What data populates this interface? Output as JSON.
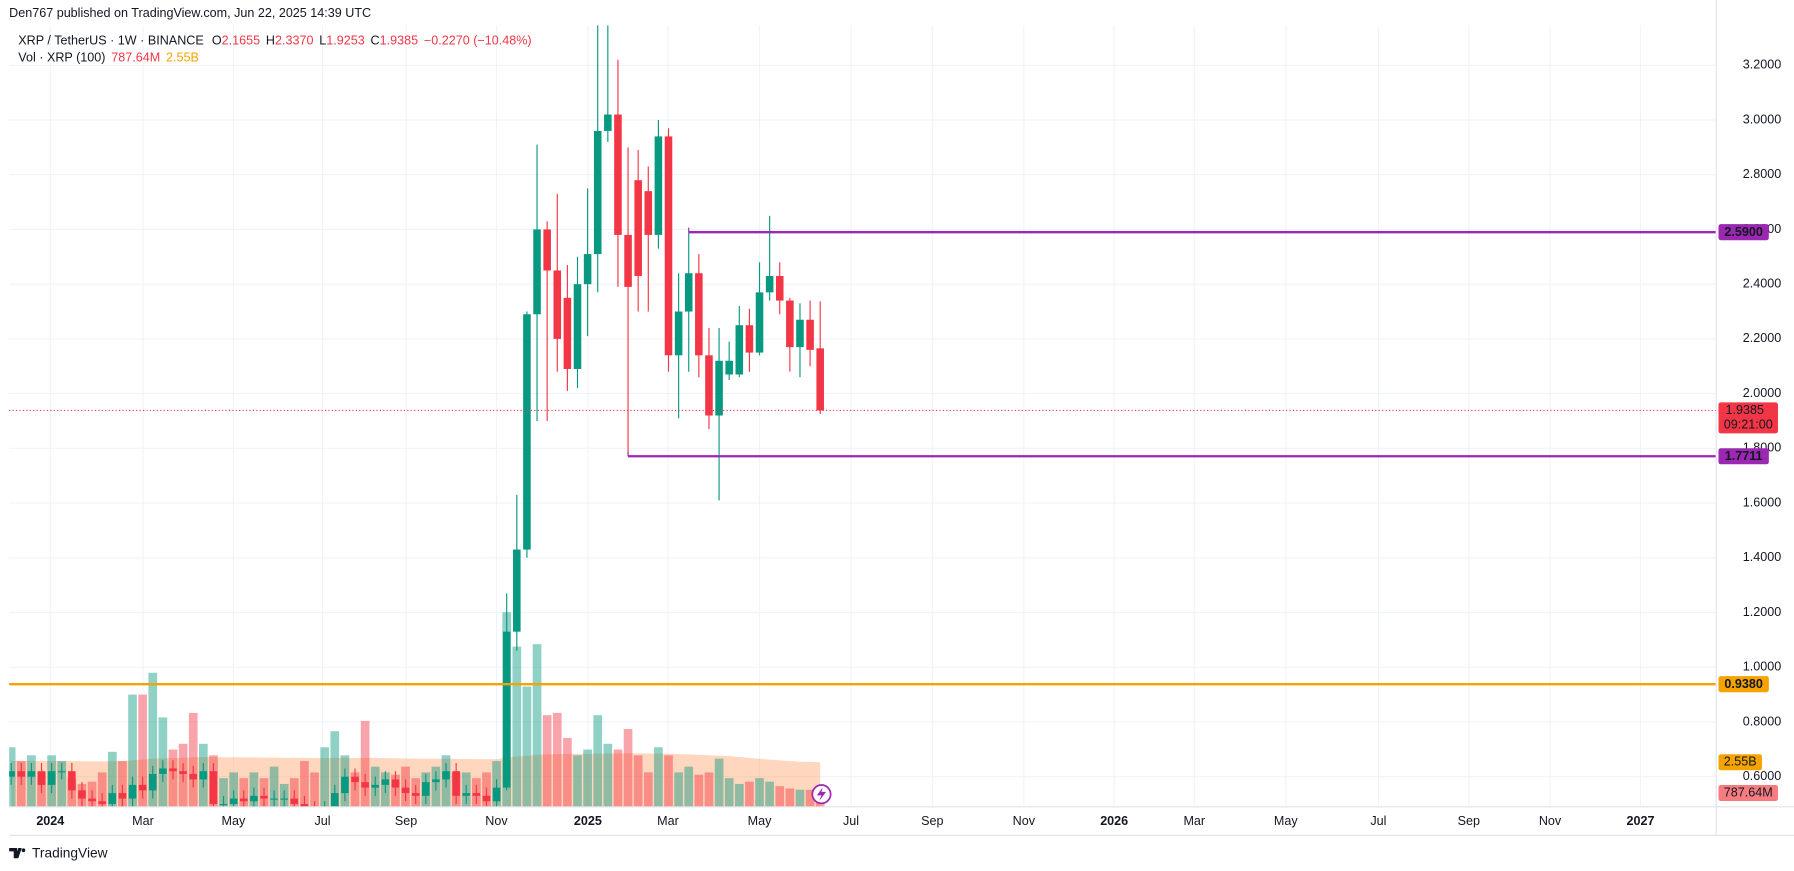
{
  "header": {
    "published": "Den767 published on TradingView.com, Jun 22, 2025 14:39 UTC"
  },
  "chart_data": {
    "type": "candlestick",
    "symbol": "XRP / TetherUS · 1W · BINANCE",
    "legend": [
      {
        "name": "O",
        "text": "2.1655"
      },
      {
        "name": "H",
        "text": "2.3370"
      },
      {
        "name": "L",
        "text": "1.9253"
      },
      {
        "name": "C",
        "text": "1.9385"
      }
    ],
    "change": "−0.2270 (−10.48%)",
    "categories": [
      null,
      null,
      null,
      null,
      null,
      null,
      null,
      null,
      null,
      null,
      null,
      null,
      null,
      null,
      null,
      null,
      null,
      null,
      null,
      null,
      null,
      null,
      null,
      null,
      null,
      null,
      null,
      null,
      null,
      null,
      null,
      null,
      null,
      null,
      null,
      null,
      null,
      null,
      null,
      null,
      null,
      null,
      null,
      null,
      null,
      null,
      null,
      null,
      null,
      null,
      null,
      null,
      null,
      null,
      null,
      null,
      null,
      null,
      null,
      null,
      null,
      null,
      null,
      null,
      null,
      null,
      null,
      null,
      null,
      null,
      null,
      null,
      null,
      null,
      null,
      null,
      null,
      null,
      null,
      null,
      null
    ],
    "open": [
      0.6,
      0.62,
      0.6,
      0.62,
      0.57,
      0.62,
      0.62,
      0.55,
      0.52,
      0.51,
      0.5,
      0.54,
      0.52,
      0.57,
      0.55,
      0.61,
      0.63,
      0.62,
      0.61,
      0.59,
      0.62,
      0.5,
      0.5,
      0.52,
      0.51,
      0.53,
      0.52,
      0.52,
      0.52,
      0.5,
      0.48,
      0.47,
      0.48,
      0.54,
      0.6,
      0.58,
      0.56,
      0.57,
      0.59,
      0.56,
      0.54,
      0.53,
      0.58,
      0.59,
      0.62,
      0.53,
      0.54,
      0.53,
      0.51,
      0.56,
      1.13,
      1.43,
      2.29,
      2.6,
      2.45,
      2.35,
      2.09,
      2.4,
      2.51,
      2.96,
      3.02,
      2.58,
      2.78,
      2.74,
      2.58,
      2.94,
      2.14,
      2.3,
      2.44,
      2.14,
      1.92,
      2.07,
      2.07,
      2.25,
      2.15,
      2.37,
      2.43,
      2.34,
      2.17,
      2.27,
      2.1655
    ],
    "high": [
      0.65,
      0.65,
      0.65,
      0.65,
      0.65,
      0.65,
      0.65,
      0.58,
      0.55,
      0.54,
      0.57,
      0.57,
      0.6,
      0.6,
      0.64,
      0.66,
      0.66,
      0.65,
      0.64,
      0.65,
      0.65,
      0.53,
      0.55,
      0.55,
      0.56,
      0.56,
      0.55,
      0.55,
      0.55,
      0.53,
      0.51,
      0.51,
      0.57,
      0.63,
      0.63,
      0.61,
      0.6,
      0.62,
      0.62,
      0.59,
      0.57,
      0.61,
      0.62,
      0.65,
      0.65,
      0.57,
      0.57,
      0.56,
      0.59,
      1.27,
      1.63,
      2.3,
      2.91,
      2.63,
      2.73,
      2.47,
      2.5,
      2.75,
      3.35,
      3.4,
      3.22,
      2.9,
      2.89,
      2.83,
      3.0,
      2.97,
      2.44,
      2.59,
      2.51,
      2.24,
      2.24,
      2.19,
      2.32,
      2.31,
      2.48,
      2.65,
      2.48,
      2.35,
      2.33,
      2.34,
      2.337
    ],
    "low": [
      0.57,
      0.57,
      0.57,
      0.54,
      0.54,
      0.59,
      0.52,
      0.49,
      0.48,
      0.47,
      0.47,
      0.49,
      0.49,
      0.52,
      0.52,
      0.58,
      0.59,
      0.58,
      0.56,
      0.56,
      0.47,
      0.47,
      0.47,
      0.48,
      0.48,
      0.49,
      0.49,
      0.49,
      0.47,
      0.45,
      0.44,
      0.44,
      0.45,
      0.51,
      0.55,
      0.53,
      0.53,
      0.54,
      0.53,
      0.51,
      0.5,
      0.5,
      0.55,
      0.56,
      0.5,
      0.5,
      0.5,
      0.48,
      0.48,
      0.55,
      1.06,
      1.4,
      1.9,
      1.9,
      2.08,
      2.01,
      2.02,
      2.21,
      2.37,
      2.92,
      2.39,
      1.77,
      2.3,
      2.3,
      2.53,
      2.08,
      1.91,
      2.08,
      2.06,
      1.87,
      1.61,
      2.05,
      2.06,
      2.08,
      2.14,
      2.34,
      2.29,
      2.08,
      2.06,
      2.1,
      1.9253
    ],
    "close": [
      0.62,
      0.6,
      0.62,
      0.57,
      0.62,
      0.62,
      0.55,
      0.52,
      0.51,
      0.5,
      0.54,
      0.52,
      0.57,
      0.55,
      0.61,
      0.63,
      0.62,
      0.61,
      0.59,
      0.62,
      0.5,
      0.5,
      0.52,
      0.51,
      0.53,
      0.52,
      0.52,
      0.52,
      0.5,
      0.48,
      0.47,
      0.48,
      0.54,
      0.6,
      0.58,
      0.56,
      0.57,
      0.59,
      0.56,
      0.54,
      0.53,
      0.58,
      0.59,
      0.62,
      0.53,
      0.54,
      0.53,
      0.51,
      0.56,
      1.13,
      1.43,
      2.29,
      2.6,
      2.45,
      2.2,
      2.09,
      2.4,
      2.51,
      2.96,
      3.02,
      2.58,
      2.39,
      2.43,
      2.58,
      2.94,
      2.14,
      2.3,
      2.44,
      2.14,
      1.92,
      2.12,
      2.12,
      2.25,
      2.15,
      2.37,
      2.43,
      2.34,
      2.17,
      2.27,
      2.16,
      1.9385
    ],
    "up_color": "#089981",
    "down_color": "#f23645",
    "xlim": [
      -0.2,
      168.6
    ],
    "xticks": [
      {
        "value": 3.87,
        "label": "2024"
      },
      {
        "value": 13.03,
        "label": "Mar"
      },
      {
        "value": 21.97,
        "label": "May"
      },
      {
        "value": 30.79,
        "label": "Jul"
      },
      {
        "value": 39.05,
        "label": "Sep"
      },
      {
        "value": 47.99,
        "label": "Nov"
      },
      {
        "value": 57.03,
        "label": "2025"
      },
      {
        "value": 64.95,
        "label": "Mar"
      },
      {
        "value": 74.0,
        "label": "May"
      },
      {
        "value": 83.05,
        "label": "Jul"
      },
      {
        "value": 91.09,
        "label": "Sep"
      },
      {
        "value": 100.14,
        "label": "Nov"
      },
      {
        "value": 109.07,
        "label": "2026"
      },
      {
        "value": 116.99,
        "label": "Mar"
      },
      {
        "value": 126.04,
        "label": "May"
      },
      {
        "value": 135.2,
        "label": "Jul"
      },
      {
        "value": 144.14,
        "label": "Sep"
      },
      {
        "value": 152.17,
        "label": "Nov"
      },
      {
        "value": 161.11,
        "label": "2027"
      }
    ],
    "ylim": [
      0.49,
      3.346
    ],
    "yticks": [
      {
        "value": 0.6,
        "label": "0.6000"
      },
      {
        "value": 0.8,
        "label": "0.8000"
      },
      {
        "value": 1.0,
        "label": "1.0000"
      },
      {
        "value": 1.2,
        "label": "1.2000"
      },
      {
        "value": 1.4,
        "label": "1.4000"
      },
      {
        "value": 1.6,
        "label": "1.6000"
      },
      {
        "value": 1.8,
        "label": "1.8000"
      },
      {
        "value": 2.0,
        "label": "2.0000"
      },
      {
        "value": 2.2,
        "label": "2.2000"
      },
      {
        "value": 2.4,
        "label": "2.4000"
      },
      {
        "value": 2.6,
        "label": "2.6000"
      },
      {
        "value": 2.8,
        "label": "2.8000"
      },
      {
        "value": 3.0,
        "label": "3.0000"
      },
      {
        "value": 3.2,
        "label": "3.2000"
      }
    ],
    "grid": true,
    "last_price": {
      "value": 1.9385,
      "countdown": "09:21:00",
      "color": "#f23645"
    },
    "levels": [
      {
        "value": 2.59,
        "label": "2.5900",
        "color": "#9c27b0",
        "start": 67
      },
      {
        "value": 1.7711,
        "label": "1.7711",
        "color": "#9c27b0",
        "start": 61
      },
      {
        "value": 0.938,
        "label": "0.9380",
        "color": "#f5a300"
      }
    ],
    "volume": {
      "title": "Vol · XRP (100)",
      "ylim": [
        0,
        12000000000
      ],
      "up_color": "rgba(8,153,129,0.45)",
      "down_color": "rgba(242,54,69,0.45)",
      "ma_color": "rgba(255,140,70,0.35)",
      "values": [
        3410000000.0,
        2620000000.0,
        2950000000.0,
        1970000000.0,
        2950000000.0,
        2620000000.0,
        1640000000.0,
        1310000000.0,
        1440000000.0,
        1970000000.0,
        3150000000.0,
        2620000000.0,
        6430000000.0,
        6430000000.0,
        7680000000.0,
        5120000000.0,
        3280000000.0,
        3610000000.0,
        5380000000.0,
        3610000000.0,
        2950000000.0,
        1640000000.0,
        1970000000.0,
        1640000000.0,
        1970000000.0,
        1640000000.0,
        2300000000.0,
        1310000000.0,
        1640000000.0,
        2620000000.0,
        1970000000.0,
        3410000000.0,
        4330000000.0,
        2950000000.0,
        1970000000.0,
        4920000000.0,
        2300000000.0,
        1970000000.0,
        1840000000.0,
        2300000000.0,
        1640000000.0,
        1970000000.0,
        2300000000.0,
        2950000000.0,
        1970000000.0,
        1970000000.0,
        1640000000.0,
        1970000000.0,
        2620000000.0,
        11150000000.0,
        9180000000.0,
        6890000000.0,
        9320000000.0,
        5250000000.0,
        5380000000.0,
        3940000000.0,
        2950000000.0,
        3280000000.0,
        5250000000.0,
        3610000000.0,
        3280000000.0,
        4460000000.0,
        2950000000.0,
        1970000000.0,
        3410000000.0,
        2950000000.0,
        1970000000.0,
        2300000000.0,
        1840000000.0,
        1970000000.0,
        2760000000.0,
        1640000000.0,
        1310000000.0,
        1440000000.0,
        1640000000.0,
        1440000000.0,
        1180000000.0,
        1050000000.0,
        980000000.0,
        970000000.0,
        787640000
      ],
      "value_label": "787.64M",
      "ma_values": [
        2620000000.0,
        2630000000.0,
        2630000000.0,
        2620000000.0,
        2620000000.0,
        2630000000.0,
        2620000000.0,
        2610000000.0,
        2600000000.0,
        2600000000.0,
        2610000000.0,
        2620000000.0,
        2660000000.0,
        2700000000.0,
        2750000000.0,
        2780000000.0,
        2790000000.0,
        2810000000.0,
        2840000000.0,
        2850000000.0,
        2850000000.0,
        2840000000.0,
        2840000000.0,
        2830000000.0,
        2830000000.0,
        2820000000.0,
        2820000000.0,
        2810000000.0,
        2800000000.0,
        2800000000.0,
        2790000000.0,
        2790000000.0,
        2800000000.0,
        2800000000.0,
        2790000000.0,
        2800000000.0,
        2800000000.0,
        2790000000.0,
        2780000000.0,
        2770000000.0,
        2760000000.0,
        2750000000.0,
        2750000000.0,
        2750000000.0,
        2740000000.0,
        2740000000.0,
        2730000000.0,
        2730000000.0,
        2730000000.0,
        2820000000.0,
        2880000000.0,
        2920000000.0,
        2980000000.0,
        3000000000.0,
        3020000000.0,
        3030000000.0,
        3030000000.0,
        3030000000.0,
        3050000000.0,
        3050000000.0,
        3050000000.0,
        3060000000.0,
        3060000000.0,
        3050000000.0,
        3050000000.0,
        3040000000.0,
        3020000000.0,
        3000000000.0,
        2980000000.0,
        2950000000.0,
        2930000000.0,
        2900000000.0,
        2850000000.0,
        2800000000.0,
        2750000000.0,
        2700000000.0,
        2660000000.0,
        2620000000.0,
        2580000000.0,
        2570000000.0,
        2550000000.0
      ],
      "ma_label": "2.55B"
    }
  },
  "footer": {
    "brand": "TradingView"
  }
}
